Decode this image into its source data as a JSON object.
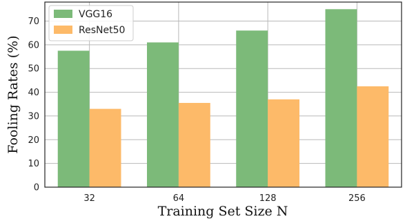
{
  "chart_data": {
    "type": "bar",
    "categories": [
      "32",
      "64",
      "128",
      "256"
    ],
    "series": [
      {
        "name": "VGG16",
        "values": [
          57.5,
          61.0,
          66.0,
          75.0
        ],
        "color": "#7cba79"
      },
      {
        "name": "ResNet50",
        "values": [
          33.0,
          35.5,
          37.0,
          42.5
        ],
        "color": "#fdba69"
      }
    ],
    "title": "",
    "xlabel": "Training Set Size N",
    "ylabel": "Fooling Rates (%)",
    "ylim": [
      0,
      78
    ],
    "yticks": [
      0,
      10,
      20,
      30,
      40,
      50,
      60,
      70
    ],
    "grid": true,
    "legend_position": "top-left"
  }
}
